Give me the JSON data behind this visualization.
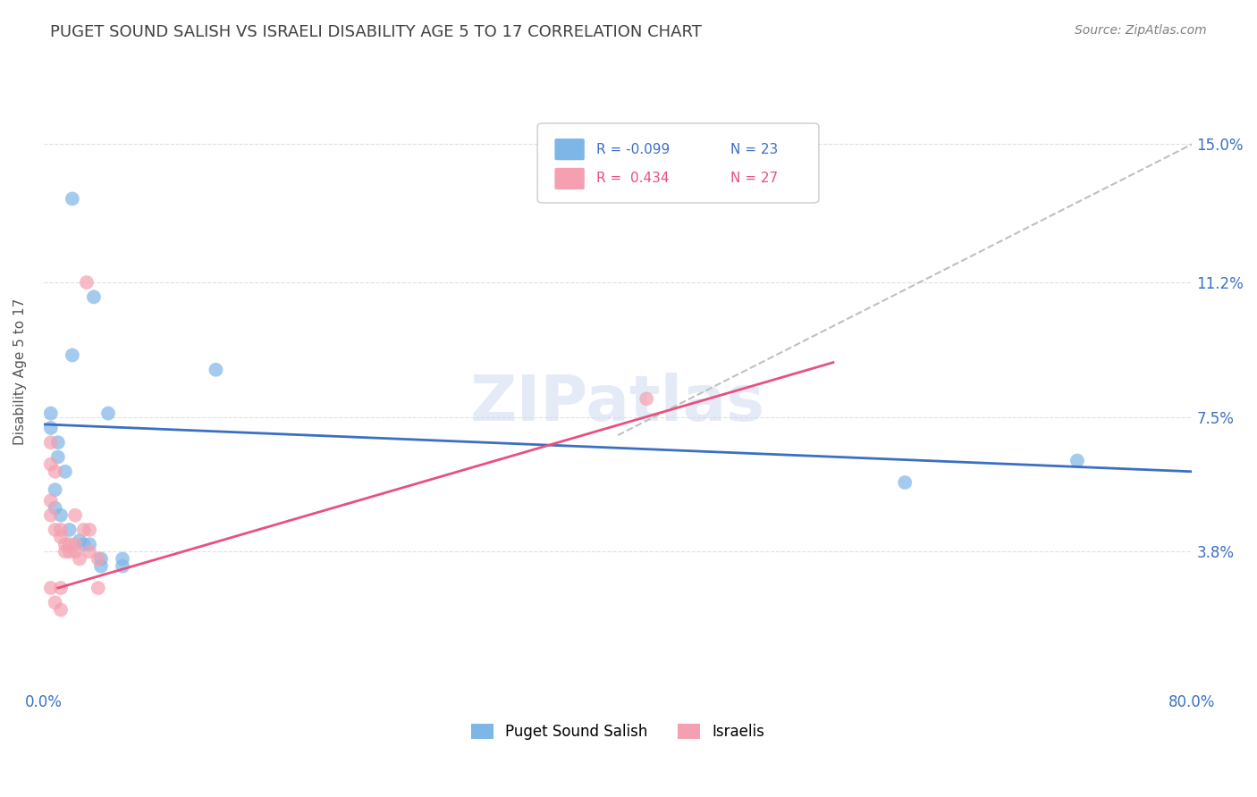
{
  "title": "PUGET SOUND SALISH VS ISRAELI DISABILITY AGE 5 TO 17 CORRELATION CHART",
  "source": "Source: ZipAtlas.com",
  "ylabel": "Disability Age 5 to 17",
  "xlim": [
    0.0,
    0.8
  ],
  "ylim": [
    0.0,
    0.175
  ],
  "xticks": [
    0.0,
    0.1,
    0.2,
    0.3,
    0.4,
    0.5,
    0.6,
    0.7,
    0.8
  ],
  "xticklabels": [
    "0.0%",
    "",
    "",
    "",
    "",
    "",
    "",
    "",
    "80.0%"
  ],
  "ytick_vals": [
    0.038,
    0.075,
    0.112,
    0.15
  ],
  "ytick_labels": [
    "3.8%",
    "7.5%",
    "11.2%",
    "15.0%"
  ],
  "watermark": "ZIPatlas",
  "legend_r_blue": "-0.099",
  "legend_n_blue": "23",
  "legend_r_pink": "0.434",
  "legend_n_pink": "27",
  "legend_label_blue": "Puget Sound Salish",
  "legend_label_pink": "Israelis",
  "blue_scatter_x": [
    0.02,
    0.035,
    0.02,
    0.045,
    0.005,
    0.005,
    0.01,
    0.01,
    0.015,
    0.008,
    0.008,
    0.012,
    0.018,
    0.025,
    0.028,
    0.032,
    0.04,
    0.04,
    0.055,
    0.055,
    0.6,
    0.72,
    0.12
  ],
  "blue_scatter_y": [
    0.135,
    0.108,
    0.092,
    0.076,
    0.076,
    0.072,
    0.068,
    0.064,
    0.06,
    0.055,
    0.05,
    0.048,
    0.044,
    0.041,
    0.04,
    0.04,
    0.036,
    0.034,
    0.036,
    0.034,
    0.057,
    0.063,
    0.088
  ],
  "pink_scatter_x": [
    0.005,
    0.005,
    0.008,
    0.03,
    0.005,
    0.005,
    0.008,
    0.012,
    0.012,
    0.015,
    0.018,
    0.018,
    0.022,
    0.025,
    0.028,
    0.032,
    0.032,
    0.038,
    0.038,
    0.012,
    0.008,
    0.012,
    0.022,
    0.42,
    0.022,
    0.015,
    0.005
  ],
  "pink_scatter_y": [
    0.068,
    0.062,
    0.06,
    0.112,
    0.052,
    0.048,
    0.044,
    0.044,
    0.042,
    0.04,
    0.04,
    0.038,
    0.038,
    0.036,
    0.044,
    0.044,
    0.038,
    0.036,
    0.028,
    0.028,
    0.024,
    0.022,
    0.048,
    0.08,
    0.04,
    0.038,
    0.028
  ],
  "blue_line_x": [
    0.0,
    0.8
  ],
  "blue_line_y": [
    0.073,
    0.06
  ],
  "pink_line_x": [
    0.01,
    0.55
  ],
  "pink_line_y": [
    0.028,
    0.09
  ],
  "dashed_line_x": [
    0.4,
    0.8
  ],
  "dashed_line_y": [
    0.07,
    0.15
  ],
  "blue_color": "#7EB6E8",
  "pink_color": "#F4A0B0",
  "blue_line_color": "#3B6FC4",
  "pink_line_color": "#E85080",
  "dashed_line_color": "#C0C0C0",
  "title_color": "#404040",
  "source_color": "#808080",
  "axis_label_color": "#3B6FC4",
  "background_color": "#FFFFFF",
  "grid_color": "#E0E0E0"
}
